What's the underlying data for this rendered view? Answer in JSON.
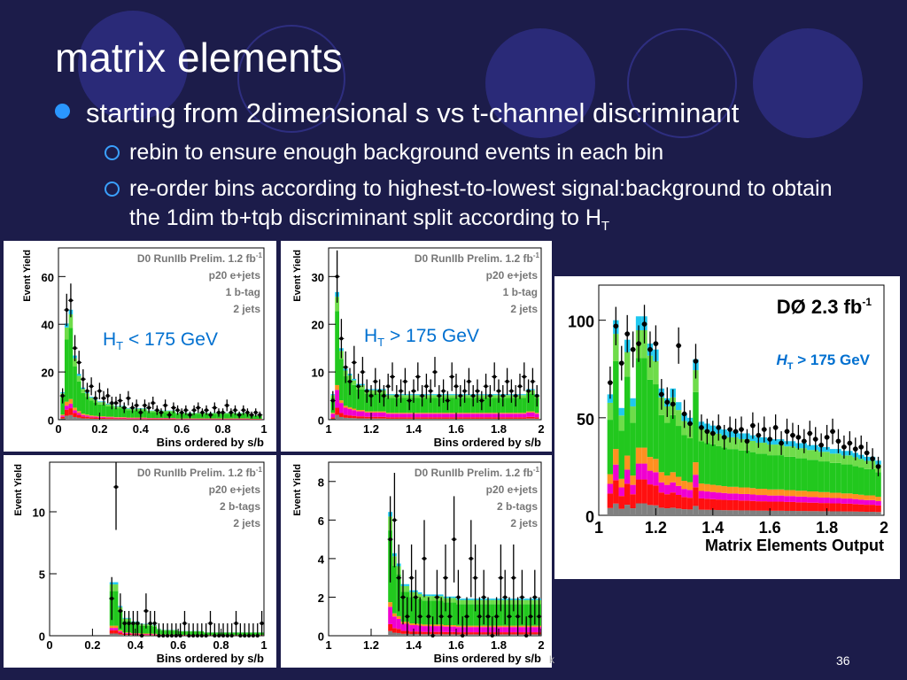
{
  "slide": {
    "title": "matrix elements",
    "bullet": "starting from 2dimensional s vs t-channel discriminant",
    "sub1": "rebin to ensure enough background events in each bin",
    "sub2_a": "re-order bins according to highest-to-lowest signal:background to obtain the 1dim tb+tqb discriminant split according to H",
    "sub2_sub": "T",
    "page_number": "36",
    "footer_fragment": "k"
  },
  "colors": {
    "background": "#1c1c4a",
    "bullet": "#2a96ff",
    "green": "#22c81e",
    "light_green": "#6fdc4a",
    "magenta": "#f000d0",
    "red": "#ff1010",
    "orange": "#ff9020",
    "cyan": "#20c8f0",
    "gray": "#808080",
    "label_blue": "#0070d0"
  },
  "chart_data": [
    {
      "type": "bar",
      "panel": "top-left",
      "ylabel": "Event Yield",
      "xlabel": "Bins ordered by s/b",
      "ylim": [
        0,
        72
      ],
      "xlim": [
        0,
        1
      ],
      "xticks": [
        "0",
        "0.2",
        "0.4",
        "0.6",
        "0.8",
        "1"
      ],
      "yticks": [
        "0",
        "20",
        "40",
        "60"
      ],
      "legend": [
        "D0 RunIIb Prelim. 1.2 fb",
        "p20 e+jets",
        "1 b-tag",
        "2 jets"
      ],
      "lumi_sup": "-1",
      "annotation": "H",
      "annotation_sub": "T",
      "annotation_rest": " < 175 GeV",
      "x": [
        0.02,
        0.04,
        0.06,
        0.08,
        0.1,
        0.12,
        0.14,
        0.16,
        0.18,
        0.2,
        0.22,
        0.24,
        0.26,
        0.28,
        0.3,
        0.32,
        0.34,
        0.36,
        0.38,
        0.4,
        0.42,
        0.44,
        0.46,
        0.48,
        0.5,
        0.52,
        0.54,
        0.56,
        0.58,
        0.6,
        0.62,
        0.64,
        0.66,
        0.68,
        0.7,
        0.72,
        0.74,
        0.76,
        0.78,
        0.8,
        0.82,
        0.84,
        0.86,
        0.88,
        0.9,
        0.92,
        0.94,
        0.96,
        0.98
      ],
      "values": [
        12,
        42,
        48,
        28,
        20,
        14,
        12,
        10,
        9,
        8,
        8,
        7,
        7,
        6,
        6,
        6,
        5,
        5,
        5,
        5,
        5,
        4,
        4,
        4,
        4,
        4,
        4,
        4,
        3,
        3,
        3,
        3,
        3,
        3,
        3,
        3,
        3,
        3,
        3,
        3,
        3,
        3,
        3,
        3,
        3,
        3,
        2,
        2,
        2
      ],
      "data": [
        10,
        46,
        50,
        30,
        24,
        17,
        12,
        14,
        9,
        12,
        9,
        10,
        7,
        7,
        8,
        5,
        9,
        5,
        6,
        3,
        6,
        5,
        7,
        4,
        3,
        6,
        2,
        5,
        4,
        3,
        4,
        2,
        4,
        5,
        3,
        4,
        2,
        5,
        3,
        3,
        6,
        3,
        4,
        2,
        4,
        3,
        2,
        3,
        2
      ]
    },
    {
      "type": "bar",
      "panel": "top-middle",
      "ylabel": "Event Yield",
      "xlabel": "Bins ordered by s/b",
      "ylim": [
        0,
        36
      ],
      "xlim": [
        1,
        2
      ],
      "xticks": [
        "1",
        "1.2",
        "1.4",
        "1.6",
        "1.8",
        "2"
      ],
      "yticks": [
        "0",
        "10",
        "20",
        "30"
      ],
      "legend": [
        "D0 RunIIb Prelim. 1.2 fb",
        "p20 e+jets",
        "1 b-tag",
        "2 jets"
      ],
      "lumi_sup": "-1",
      "annotation": "H",
      "annotation_sub": "T",
      "annotation_rest": " > 175 GeV",
      "x": [
        1.02,
        1.04,
        1.06,
        1.08,
        1.1,
        1.12,
        1.14,
        1.16,
        1.18,
        1.2,
        1.22,
        1.24,
        1.26,
        1.28,
        1.3,
        1.32,
        1.34,
        1.36,
        1.38,
        1.4,
        1.42,
        1.44,
        1.46,
        1.48,
        1.5,
        1.52,
        1.54,
        1.56,
        1.58,
        1.6,
        1.62,
        1.64,
        1.66,
        1.68,
        1.7,
        1.72,
        1.74,
        1.76,
        1.78,
        1.8,
        1.82,
        1.84,
        1.86,
        1.88,
        1.9,
        1.92,
        1.94,
        1.96,
        1.98
      ],
      "values": [
        5,
        25,
        14,
        10,
        9,
        8,
        7,
        7,
        6,
        6,
        6,
        6,
        6,
        5,
        5,
        5,
        5,
        5,
        5,
        5,
        5,
        5,
        5,
        5,
        5,
        5,
        5,
        5,
        5,
        5,
        5,
        5,
        5,
        5,
        5,
        5,
        5,
        5,
        5,
        5,
        5,
        5,
        5,
        5,
        5,
        5,
        6,
        6,
        5
      ],
      "data": [
        4,
        30,
        17,
        11,
        8,
        12,
        7,
        10,
        6,
        5,
        8,
        6,
        5,
        7,
        9,
        5,
        6,
        8,
        4,
        6,
        9,
        5,
        7,
        6,
        10,
        5,
        6,
        4,
        9,
        7,
        5,
        6,
        8,
        5,
        6,
        4,
        7,
        5,
        9,
        6,
        5,
        8,
        6,
        5,
        7,
        9,
        6,
        8,
        5
      ]
    },
    {
      "type": "bar",
      "panel": "bottom-left",
      "ylabel": "Event Yield",
      "xlabel": "Bins ordered by s/b",
      "ylim": [
        0,
        14
      ],
      "xlim": [
        0,
        1
      ],
      "xticks": [
        "0",
        "0.2",
        "0.4",
        "0.6",
        "0.8",
        "1"
      ],
      "yticks": [
        "0",
        "5",
        "10"
      ],
      "legend": [
        "D0 RunIIb Prelim. 1.2 fb",
        "p20 e+jets",
        "2 b-tags",
        "2 jets"
      ],
      "lumi_sup": "-1",
      "x": [
        0.29,
        0.31,
        0.33,
        0.35,
        0.37,
        0.39,
        0.41,
        0.43,
        0.45,
        0.47,
        0.49,
        0.51,
        0.53,
        0.55,
        0.57,
        0.59,
        0.61,
        0.63,
        0.65,
        0.67,
        0.69,
        0.71,
        0.73,
        0.75,
        0.77,
        0.79,
        0.81,
        0.83,
        0.85,
        0.87,
        0.89,
        0.91,
        0.93,
        0.95,
        0.97,
        0.99
      ],
      "values": [
        4.5,
        4.5,
        2.5,
        1.5,
        1.5,
        1.2,
        1.2,
        1.0,
        1.0,
        1.0,
        0.9,
        0.6,
        0.5,
        0.5,
        0.5,
        0.5,
        0.4,
        0.4,
        0.4,
        0.4,
        0.4,
        0.4,
        0.3,
        0.3,
        0.3,
        0.3,
        0.3,
        0.3,
        0.3,
        0.3,
        0.3,
        0.3,
        0.3,
        0.3,
        0.3,
        0.3
      ],
      "data": [
        3,
        12,
        2,
        1,
        1,
        1,
        1,
        0,
        2,
        1,
        1,
        0,
        0,
        0,
        0,
        0,
        0,
        1,
        0,
        0,
        0,
        0,
        0,
        1,
        0,
        0,
        0,
        0,
        0,
        1,
        0,
        0,
        0,
        0,
        0,
        1
      ]
    },
    {
      "type": "bar",
      "panel": "bottom-middle",
      "ylabel": "Event Yield",
      "xlabel": "Bins ordered by s/b",
      "ylim": [
        0,
        9
      ],
      "xlim": [
        1,
        2
      ],
      "xticks": [
        "1",
        "1.2",
        "1.4",
        "1.6",
        "1.8",
        "2"
      ],
      "yticks": [
        "0",
        "2",
        "4",
        "6",
        "8"
      ],
      "legend": [
        "D0 RunIIb Prelim. 1.2 fb",
        "p20 e+jets",
        "2 b-tags",
        "2 jets"
      ],
      "lumi_sup": "-1",
      "x": [
        1.29,
        1.31,
        1.33,
        1.35,
        1.37,
        1.39,
        1.41,
        1.43,
        1.45,
        1.47,
        1.49,
        1.51,
        1.53,
        1.55,
        1.57,
        1.59,
        1.61,
        1.63,
        1.65,
        1.67,
        1.69,
        1.71,
        1.73,
        1.75,
        1.77,
        1.79,
        1.81,
        1.83,
        1.85,
        1.87,
        1.89,
        1.91,
        1.93,
        1.95,
        1.97,
        1.99
      ],
      "values": [
        6,
        4,
        3.5,
        2.5,
        2.5,
        2.2,
        2.2,
        2.1,
        2,
        2,
        2,
        2,
        2,
        1.9,
        1.9,
        1.9,
        1.8,
        1.8,
        1.8,
        1.8,
        1.8,
        1.8,
        1.8,
        1.8,
        1.8,
        1.8,
        1.8,
        1.8,
        1.8,
        1.8,
        1.8,
        1.8,
        1.8,
        1.8,
        1.8,
        1.8
      ],
      "data": [
        5,
        6,
        3,
        2,
        1,
        3,
        2,
        1,
        4,
        1,
        0,
        2,
        1,
        3,
        1,
        5,
        2,
        0,
        1,
        4,
        3,
        1,
        2,
        1,
        0,
        1,
        3,
        2,
        1,
        3,
        1,
        2,
        0,
        1,
        2,
        1
      ]
    },
    {
      "type": "bar",
      "panel": "right",
      "ylabel": "",
      "xlabel": "Matrix Elements Output",
      "ylim": [
        0,
        118
      ],
      "xlim": [
        1,
        2
      ],
      "xticks": [
        "1",
        "1.2",
        "1.4",
        "1.6",
        "1.8",
        "2"
      ],
      "yticks": [
        "0",
        "50",
        "100"
      ],
      "legend": [
        "DØ  2.3 fb"
      ],
      "lumi_sup": "-1",
      "annotation": "H",
      "annotation_sub": "T",
      "annotation_rest": " > 175 GeV",
      "x": [
        1.04,
        1.06,
        1.08,
        1.1,
        1.12,
        1.14,
        1.16,
        1.18,
        1.2,
        1.22,
        1.24,
        1.26,
        1.28,
        1.3,
        1.32,
        1.34,
        1.36,
        1.38,
        1.4,
        1.42,
        1.44,
        1.46,
        1.48,
        1.5,
        1.52,
        1.54,
        1.56,
        1.58,
        1.6,
        1.62,
        1.64,
        1.66,
        1.68,
        1.7,
        1.72,
        1.74,
        1.76,
        1.78,
        1.8,
        1.82,
        1.84,
        1.86,
        1.88,
        1.9,
        1.92,
        1.94,
        1.96,
        1.98
      ],
      "values": [
        62,
        100,
        55,
        90,
        60,
        102,
        102,
        88,
        85,
        65,
        60,
        65,
        58,
        52,
        50,
        80,
        48,
        47,
        46,
        45,
        44,
        43,
        43,
        42,
        42,
        41,
        40,
        40,
        39,
        39,
        39,
        38,
        38,
        37,
        37,
        36,
        36,
        35,
        35,
        34,
        34,
        33,
        33,
        32,
        31,
        30,
        30,
        28
      ],
      "data": [
        68,
        97,
        78,
        93,
        85,
        88,
        98,
        85,
        88,
        62,
        58,
        57,
        87,
        52,
        47,
        79,
        45,
        43,
        42,
        45,
        40,
        44,
        43,
        44,
        38,
        46,
        41,
        44,
        39,
        45,
        37,
        43,
        41,
        40,
        38,
        42,
        39,
        36,
        40,
        43,
        38,
        35,
        37,
        34,
        35,
        32,
        29,
        25
      ]
    }
  ]
}
